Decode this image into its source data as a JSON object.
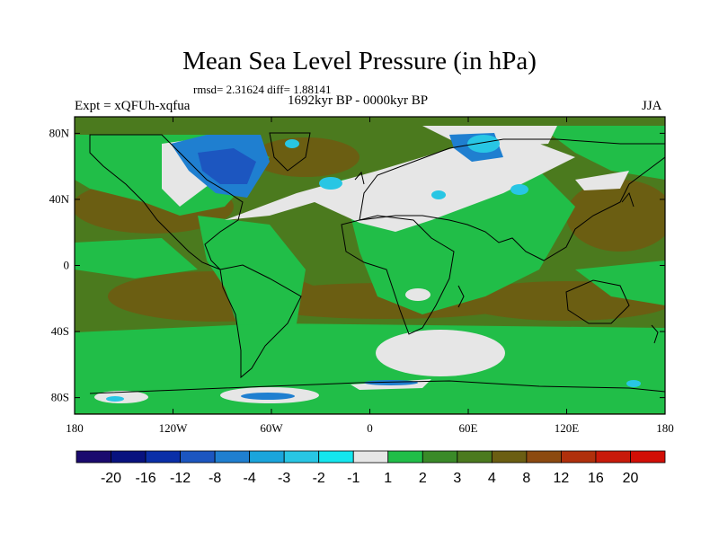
{
  "title": "Mean Sea Level Pressure (in hPa)",
  "stats_line": "rmsd= 2.31624 diff= 1.88141",
  "experiment_label": "Expt = xQFUh-xqfua",
  "period_label": "1692kyr BP - 0000kyr BP",
  "season_label": "JJA",
  "lat_ticks": [
    "80N",
    "40N",
    "0",
    "40S",
    "80S"
  ],
  "lon_ticks": [
    "180",
    "120W",
    "60W",
    "0",
    "60E",
    "120E",
    "180"
  ],
  "colorbar": {
    "labels": [
      "-20",
      "-16",
      "-12",
      "-8",
      "-4",
      "-3",
      "-2",
      "-1",
      "1",
      "2",
      "3",
      "4",
      "8",
      "12",
      "16",
      "20"
    ],
    "colors": [
      "#1a0a6e",
      "#08127f",
      "#0a2fa8",
      "#1c56c0",
      "#1f7fd0",
      "#1aa5dc",
      "#28c6e4",
      "#14e6ee",
      "#e6e6e6",
      "#21be48",
      "#3a8a28",
      "#4b7a1e",
      "#6b5e12",
      "#8c4a10",
      "#b0300c",
      "#c81a0a",
      "#d20e06"
    ]
  },
  "map_colors": {
    "ocean_base": "#4b7a1e",
    "green": "#21be48",
    "gray": "#e6e6e6",
    "brown": "#6b5e12",
    "brown_dark": "#8c4a10",
    "blue": "#1c56c0",
    "blue_mid": "#1f7fd0",
    "cyan": "#28c6e4"
  }
}
